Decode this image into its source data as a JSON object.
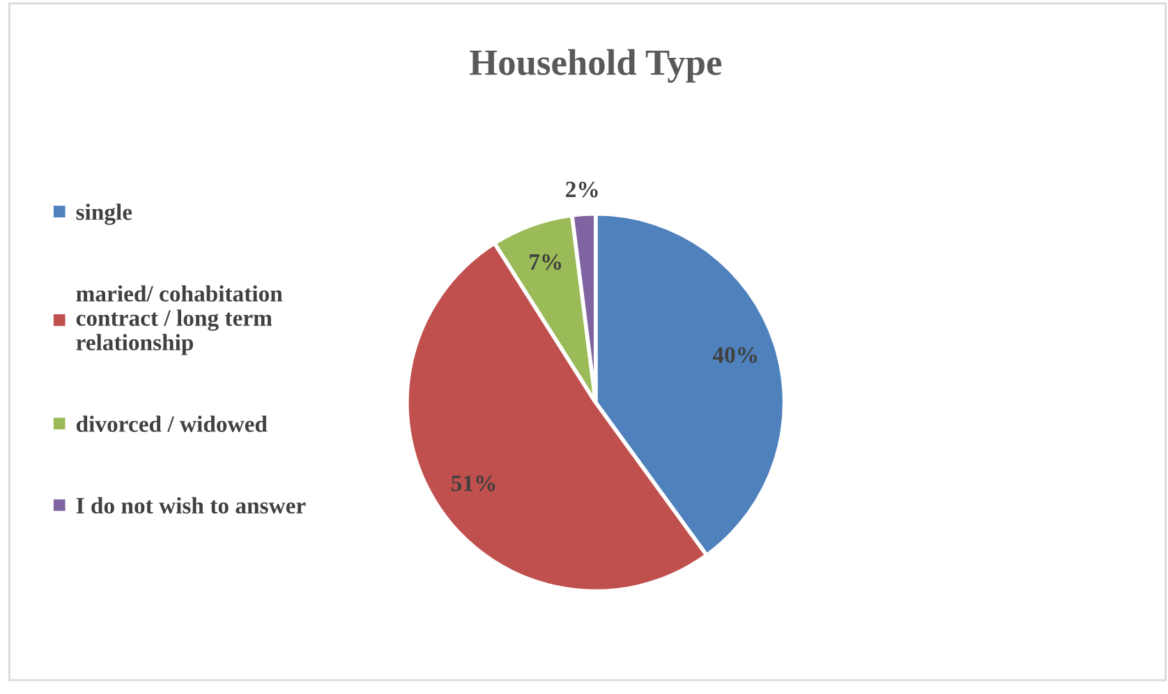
{
  "chart_data": {
    "type": "pie",
    "title": "Household Type",
    "categories": [
      "single",
      "maried/ cohabitation\ncontract / long term\nrelationship",
      "divorced / widowed",
      "I do not wish to answer"
    ],
    "values": [
      40,
      51,
      7,
      2
    ],
    "colors": [
      "#4f81bd",
      "#c0504d",
      "#9bbb59",
      "#8064a2"
    ],
    "value_labels": [
      "40%",
      "51%",
      "7%",
      "2%"
    ],
    "legend": "left"
  }
}
